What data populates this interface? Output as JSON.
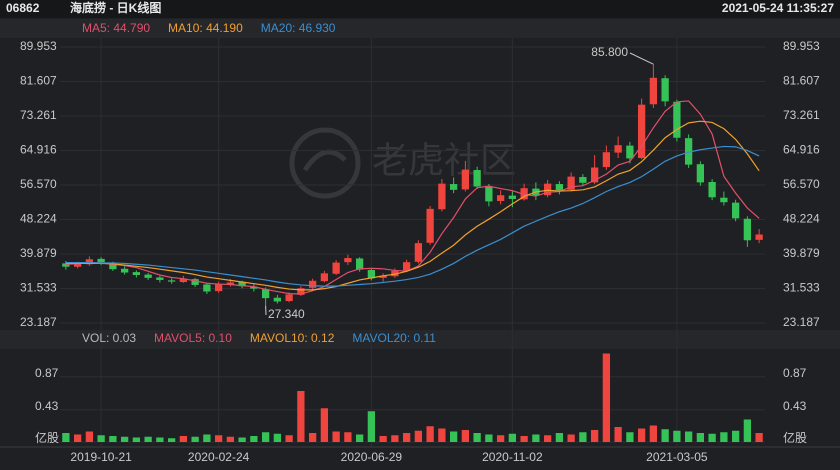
{
  "header": {
    "code": "06862",
    "name": "海底捞 - 日K线图",
    "time": "2021-05-24 11:35:27"
  },
  "chart_data": {
    "type": "candlestick",
    "categories": [
      null,
      null,
      null,
      "2019-10-21",
      null,
      null,
      null,
      null,
      null,
      null,
      null,
      null,
      null,
      "2020-02-24",
      null,
      null,
      null,
      null,
      null,
      null,
      null,
      null,
      null,
      null,
      null,
      null,
      "2020-06-29",
      null,
      null,
      null,
      null,
      null,
      null,
      null,
      null,
      null,
      null,
      null,
      "2020-11-02",
      null,
      null,
      null,
      null,
      null,
      null,
      null,
      null,
      null,
      null,
      null,
      null,
      null,
      "2021-03-05",
      null,
      null,
      null,
      null,
      null,
      null,
      null
    ],
    "open": [
      37.6,
      36.8,
      37.4,
      38.7,
      37.8,
      36.3,
      35.5,
      34.9,
      34.2,
      33.5,
      33.1,
      33.8,
      32.5,
      30.9,
      32.5,
      33.1,
      32.0,
      31.4,
      29.3,
      28.5,
      30.0,
      31.7,
      33.3,
      35.1,
      37.9,
      38.8,
      36.0,
      34.1,
      34.5,
      35.9,
      38.0,
      42.6,
      50.7,
      56.8,
      55.5,
      60.2,
      56.1,
      52.7,
      54.0,
      53.1,
      55.7,
      54.1,
      56.8,
      55.4,
      58.5,
      57.2,
      60.9,
      64.4,
      66.1,
      63.1,
      76.1,
      82.4,
      76.7,
      67.9,
      61.6,
      57.3,
      53.5,
      52.3,
      48.4,
      43.3
    ],
    "high": [
      38.2,
      38.0,
      39.3,
      39.1,
      38.0,
      36.9,
      35.9,
      35.3,
      34.6,
      34.0,
      34.6,
      34.1,
      32.9,
      33.2,
      33.8,
      33.4,
      32.6,
      31.8,
      30.0,
      30.6,
      32.1,
      33.9,
      35.8,
      38.4,
      39.7,
      39.1,
      36.4,
      35.2,
      36.4,
      38.5,
      43.2,
      51.5,
      58.0,
      58.4,
      62.4,
      61.0,
      56.8,
      55.3,
      55.1,
      56.9,
      57.2,
      57.8,
      57.5,
      59.6,
      59.2,
      63.8,
      66.1,
      68.3,
      67.0,
      77.5,
      85.8,
      83.1,
      77.2,
      68.8,
      62.3,
      58.0,
      55.0,
      53.0,
      49.0,
      45.9
    ],
    "low": [
      36.1,
      36.4,
      37.0,
      37.2,
      35.8,
      34.9,
      34.2,
      33.6,
      33.0,
      32.7,
      32.9,
      31.9,
      30.2,
      30.5,
      32.0,
      31.6,
      30.8,
      27.34,
      27.9,
      28.2,
      29.7,
      31.2,
      33.0,
      34.8,
      37.2,
      35.6,
      33.5,
      33.2,
      34.1,
      35.5,
      37.6,
      42.1,
      50.2,
      54.6,
      55.0,
      55.6,
      51.4,
      51.9,
      51.2,
      52.8,
      52.9,
      53.6,
      54.3,
      55.0,
      56.3,
      56.8,
      60.2,
      63.1,
      61.8,
      62.8,
      75.2,
      75.6,
      67.1,
      60.7,
      56.4,
      52.9,
      51.6,
      47.8,
      41.6,
      42.5
    ],
    "close": [
      36.8,
      37.5,
      38.6,
      37.9,
      36.2,
      35.4,
      34.8,
      34.1,
      33.6,
      33.2,
      33.9,
      32.4,
      30.8,
      32.6,
      33.0,
      32.1,
      31.5,
      29.2,
      28.4,
      30.1,
      31.6,
      33.4,
      35.2,
      37.8,
      38.9,
      36.1,
      34.0,
      34.6,
      35.8,
      37.9,
      42.5,
      50.8,
      56.9,
      55.4,
      60.3,
      56.2,
      52.6,
      54.1,
      53.2,
      55.8,
      54.0,
      56.9,
      55.3,
      58.6,
      57.1,
      60.8,
      64.5,
      66.2,
      63.0,
      76.0,
      82.5,
      76.8,
      68.0,
      61.5,
      57.2,
      53.6,
      52.4,
      48.5,
      43.2,
      44.6
    ],
    "up_color": "#f0443e",
    "down_color": "#35c357",
    "ylim": [
      23.187,
      89.953
    ],
    "yticks": [
      23.187,
      31.533,
      39.879,
      48.224,
      {
        "value": 56.57,
        "label": "56.570"
      },
      64.916,
      73.261,
      81.607,
      89.953
    ],
    "grid": true,
    "series": [
      {
        "name": "MA5: 44.790",
        "color": "#e0506a",
        "values": [
          37.4,
          37.5,
          37.8,
          37.7,
          37.4,
          37.1,
          36.6,
          35.7,
          34.8,
          34.2,
          33.9,
          33.4,
          32.8,
          32.6,
          32.5,
          32.2,
          32.0,
          31.3,
          30.8,
          30.3,
          30.2,
          31.0,
          32.0,
          33.7,
          35.4,
          36.3,
          36.4,
          36.3,
          35.9,
          35.7,
          37.0,
          40.3,
          44.8,
          48.7,
          53.2,
          55.9,
          56.3,
          55.7,
          55.2,
          54.3,
          53.9,
          54.8,
          55.0,
          56.1,
          56.4,
          57.7,
          59.2,
          61.4,
          62.3,
          66.0,
          70.4,
          74.4,
          76.7,
          76.9,
          73.7,
          68.9,
          58.7,
          54.6,
          51.0,
          48.5
        ]
      },
      {
        "name": "MA10: 44.190",
        "color": "#f0a030",
        "values": [
          37.6,
          37.6,
          37.6,
          37.6,
          37.5,
          37.2,
          36.9,
          36.6,
          36.2,
          35.8,
          35.4,
          34.9,
          34.3,
          33.9,
          33.5,
          33.1,
          32.7,
          32.3,
          31.8,
          31.4,
          31.2,
          31.2,
          31.5,
          32.0,
          32.8,
          33.6,
          34.1,
          34.6,
          35.0,
          35.7,
          36.7,
          38.1,
          40.1,
          42.0,
          44.5,
          46.6,
          48.3,
          50.1,
          52.0,
          53.8,
          54.9,
          55.3,
          55.1,
          55.2,
          55.4,
          56.1,
          57.6,
          59.2,
          60.1,
          62.2,
          65.0,
          68.0,
          70.0,
          71.6,
          72.0,
          71.7,
          70.2,
          67.6,
          64.1,
          60.0
        ]
      },
      {
        "name": "MA20: 46.930",
        "color": "#3a8fd0",
        "values": [
          37.8,
          37.8,
          37.8,
          37.7,
          37.7,
          37.6,
          37.4,
          37.2,
          36.9,
          36.6,
          36.3,
          36.0,
          35.6,
          35.2,
          34.8,
          34.4,
          34.0,
          33.6,
          33.1,
          32.7,
          32.4,
          32.2,
          32.1,
          32.1,
          32.3,
          32.5,
          32.7,
          33.0,
          33.3,
          33.7,
          34.2,
          35.0,
          36.2,
          37.6,
          39.3,
          40.8,
          42.1,
          43.4,
          45.0,
          46.6,
          47.8,
          49.0,
          50.1,
          51.0,
          52.1,
          53.5,
          55.0,
          56.2,
          57.2,
          58.6,
          60.4,
          62.3,
          63.6,
          64.5,
          65.1,
          65.5,
          65.9,
          65.8,
          64.9,
          63.6
        ]
      }
    ],
    "annotations": [
      "85.800",
      "27.340"
    ],
    "watermark": "老虎社区",
    "volume": {
      "type": "bar",
      "values": [
        0.12,
        0.1,
        0.14,
        0.09,
        0.08,
        0.07,
        0.06,
        0.07,
        0.06,
        0.05,
        0.08,
        0.07,
        0.1,
        0.09,
        0.07,
        0.06,
        0.08,
        0.13,
        0.11,
        0.09,
        0.68,
        0.12,
        0.45,
        0.14,
        0.13,
        0.1,
        0.41,
        0.08,
        0.09,
        0.12,
        0.15,
        0.21,
        0.18,
        0.14,
        0.16,
        0.12,
        0.1,
        0.09,
        0.11,
        0.08,
        0.1,
        0.09,
        0.12,
        0.1,
        0.13,
        0.16,
        1.18,
        0.2,
        0.13,
        0.18,
        0.22,
        0.17,
        0.15,
        0.14,
        0.12,
        0.11,
        0.13,
        0.15,
        0.3,
        0.12
      ],
      "ylim": [
        0,
        1.2
      ],
      "yticks": [
        {
          "value": 0,
          "label": "亿股"
        },
        0.43,
        0.87
      ],
      "legend": [
        {
          "name": "VOL: 0.03",
          "color": "#b8b8b8"
        },
        {
          "name": "MAVOL5: 0.10",
          "color": "#e0506a"
        },
        {
          "name": "MAVOL10: 0.12",
          "color": "#f0a030"
        },
        {
          "name": "MAVOL20: 0.11",
          "color": "#3a8fd0"
        }
      ]
    }
  }
}
